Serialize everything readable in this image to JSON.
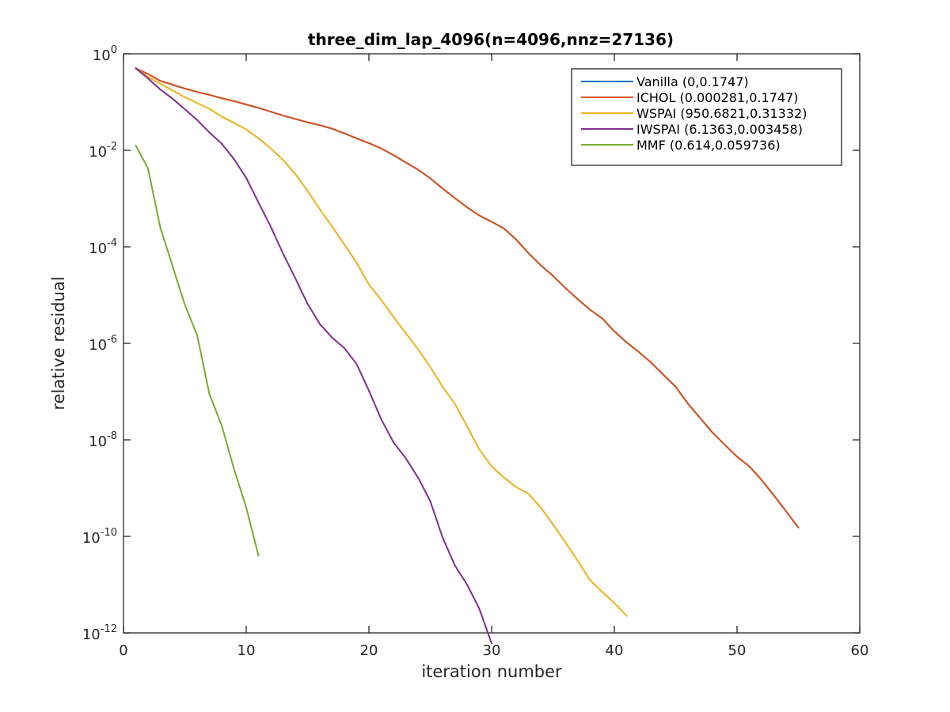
{
  "chart_data": {
    "type": "line",
    "title": "three_dim_lap_4096(n=4096,nnz=27136)",
    "xlabel": "iteration number",
    "ylabel": "relative residual",
    "xlim": [
      0,
      60
    ],
    "ylim_exponent": [
      -12,
      0
    ],
    "yscale": "log",
    "x_ticks": [
      "0",
      "10",
      "20",
      "30",
      "40",
      "50",
      "60"
    ],
    "y_tick_base": "10",
    "y_tick_exponents": [
      "0",
      "-2",
      "-4",
      "-6",
      "-8",
      "-10",
      "-12"
    ],
    "grid": false,
    "legend_position": "top-right",
    "series": [
      {
        "name": "Vanilla (0,0.1747)",
        "color": "#0072BD",
        "log10_y": [
          [
            1,
            -0.3
          ],
          [
            2,
            -0.42
          ],
          [
            3,
            -0.56
          ],
          [
            4,
            -0.64
          ],
          [
            5,
            -0.72
          ],
          [
            6,
            -0.79
          ],
          [
            7,
            -0.85
          ],
          [
            8,
            -0.92
          ],
          [
            9,
            -0.98
          ],
          [
            10,
            -1.05
          ],
          [
            11,
            -1.12
          ],
          [
            12,
            -1.2
          ],
          [
            13,
            -1.28
          ],
          [
            14,
            -1.35
          ],
          [
            15,
            -1.42
          ],
          [
            16,
            -1.48
          ],
          [
            17,
            -1.55
          ],
          [
            18,
            -1.65
          ],
          [
            19,
            -1.75
          ],
          [
            20,
            -1.85
          ],
          [
            21,
            -1.96
          ],
          [
            22,
            -2.1
          ],
          [
            23,
            -2.25
          ],
          [
            24,
            -2.4
          ],
          [
            25,
            -2.58
          ],
          [
            26,
            -2.79
          ],
          [
            27,
            -2.99
          ],
          [
            28,
            -3.18
          ],
          [
            29,
            -3.35
          ],
          [
            30,
            -3.48
          ],
          [
            31,
            -3.62
          ],
          [
            32,
            -3.85
          ],
          [
            33,
            -4.13
          ],
          [
            34,
            -4.38
          ],
          [
            35,
            -4.6
          ],
          [
            36,
            -4.85
          ],
          [
            37,
            -5.08
          ],
          [
            38,
            -5.3
          ],
          [
            39,
            -5.48
          ],
          [
            40,
            -5.75
          ],
          [
            41,
            -5.98
          ],
          [
            42,
            -6.18
          ],
          [
            43,
            -6.4
          ],
          [
            44,
            -6.65
          ],
          [
            45,
            -6.9
          ],
          [
            46,
            -7.25
          ],
          [
            47,
            -7.55
          ],
          [
            48,
            -7.85
          ],
          [
            49,
            -8.1
          ],
          [
            50,
            -8.35
          ],
          [
            51,
            -8.55
          ],
          [
            52,
            -8.83
          ],
          [
            53,
            -9.15
          ],
          [
            54,
            -9.48
          ],
          [
            55,
            -9.82
          ]
        ]
      },
      {
        "name": "ICHOL (0.000281,0.1747)",
        "color": "#D95319",
        "log10_y": [
          [
            1,
            -0.3
          ],
          [
            2,
            -0.42
          ],
          [
            3,
            -0.56
          ],
          [
            4,
            -0.64
          ],
          [
            5,
            -0.72
          ],
          [
            6,
            -0.79
          ],
          [
            7,
            -0.85
          ],
          [
            8,
            -0.92
          ],
          [
            9,
            -0.98
          ],
          [
            10,
            -1.05
          ],
          [
            11,
            -1.12
          ],
          [
            12,
            -1.2
          ],
          [
            13,
            -1.28
          ],
          [
            14,
            -1.35
          ],
          [
            15,
            -1.42
          ],
          [
            16,
            -1.48
          ],
          [
            17,
            -1.55
          ],
          [
            18,
            -1.65
          ],
          [
            19,
            -1.75
          ],
          [
            20,
            -1.85
          ],
          [
            21,
            -1.96
          ],
          [
            22,
            -2.1
          ],
          [
            23,
            -2.25
          ],
          [
            24,
            -2.4
          ],
          [
            25,
            -2.58
          ],
          [
            26,
            -2.79
          ],
          [
            27,
            -2.99
          ],
          [
            28,
            -3.18
          ],
          [
            29,
            -3.35
          ],
          [
            30,
            -3.48
          ],
          [
            31,
            -3.62
          ],
          [
            32,
            -3.85
          ],
          [
            33,
            -4.13
          ],
          [
            34,
            -4.38
          ],
          [
            35,
            -4.6
          ],
          [
            36,
            -4.85
          ],
          [
            37,
            -5.08
          ],
          [
            38,
            -5.3
          ],
          [
            39,
            -5.48
          ],
          [
            40,
            -5.75
          ],
          [
            41,
            -5.98
          ],
          [
            42,
            -6.18
          ],
          [
            43,
            -6.4
          ],
          [
            44,
            -6.65
          ],
          [
            45,
            -6.9
          ],
          [
            46,
            -7.25
          ],
          [
            47,
            -7.55
          ],
          [
            48,
            -7.85
          ],
          [
            49,
            -8.1
          ],
          [
            50,
            -8.35
          ],
          [
            51,
            -8.55
          ],
          [
            52,
            -8.83
          ],
          [
            53,
            -9.15
          ],
          [
            54,
            -9.48
          ],
          [
            55,
            -9.82
          ]
        ]
      },
      {
        "name": "WSPAI (950.6821,0.31332)",
        "color": "#EDB120",
        "log10_y": [
          [
            1,
            -0.3
          ],
          [
            2,
            -0.48
          ],
          [
            3,
            -0.62
          ],
          [
            4,
            -0.76
          ],
          [
            5,
            -0.9
          ],
          [
            6,
            -1.02
          ],
          [
            7,
            -1.14
          ],
          [
            8,
            -1.3
          ],
          [
            9,
            -1.43
          ],
          [
            10,
            -1.57
          ],
          [
            11,
            -1.75
          ],
          [
            12,
            -1.96
          ],
          [
            13,
            -2.2
          ],
          [
            14,
            -2.49
          ],
          [
            15,
            -2.84
          ],
          [
            16,
            -3.22
          ],
          [
            17,
            -3.58
          ],
          [
            18,
            -3.95
          ],
          [
            19,
            -4.33
          ],
          [
            20,
            -4.78
          ],
          [
            21,
            -5.1
          ],
          [
            22,
            -5.45
          ],
          [
            23,
            -5.79
          ],
          [
            24,
            -6.12
          ],
          [
            25,
            -6.49
          ],
          [
            26,
            -6.9
          ],
          [
            27,
            -7.25
          ],
          [
            28,
            -7.72
          ],
          [
            29,
            -8.2
          ],
          [
            30,
            -8.55
          ],
          [
            31,
            -8.78
          ],
          [
            32,
            -8.98
          ],
          [
            33,
            -9.12
          ],
          [
            34,
            -9.4
          ],
          [
            35,
            -9.75
          ],
          [
            36,
            -10.12
          ],
          [
            37,
            -10.5
          ],
          [
            38,
            -10.9
          ],
          [
            39,
            -11.15
          ],
          [
            40,
            -11.38
          ],
          [
            41,
            -11.65
          ]
        ]
      },
      {
        "name": "IWSPAI (6.1363,0.003458)",
        "color": "#7E2F8E",
        "log10_y": [
          [
            1,
            -0.3
          ],
          [
            2,
            -0.51
          ],
          [
            3,
            -0.74
          ],
          [
            4,
            -0.93
          ],
          [
            5,
            -1.15
          ],
          [
            6,
            -1.37
          ],
          [
            7,
            -1.63
          ],
          [
            8,
            -1.86
          ],
          [
            9,
            -2.18
          ],
          [
            10,
            -2.57
          ],
          [
            11,
            -3.08
          ],
          [
            12,
            -3.58
          ],
          [
            13,
            -4.14
          ],
          [
            14,
            -4.65
          ],
          [
            15,
            -5.18
          ],
          [
            16,
            -5.6
          ],
          [
            17,
            -5.88
          ],
          [
            18,
            -6.1
          ],
          [
            19,
            -6.43
          ],
          [
            20,
            -6.98
          ],
          [
            21,
            -7.57
          ],
          [
            22,
            -8.05
          ],
          [
            23,
            -8.38
          ],
          [
            24,
            -8.78
          ],
          [
            25,
            -9.27
          ],
          [
            26,
            -10.02
          ],
          [
            27,
            -10.6
          ],
          [
            28,
            -11.0
          ],
          [
            29,
            -11.5
          ],
          [
            30,
            -12.22
          ]
        ]
      },
      {
        "name": "MMF (0.614,0.059736)",
        "color": "#77AC30",
        "log10_y": [
          [
            1,
            -1.9
          ],
          [
            2,
            -2.38
          ],
          [
            3,
            -3.6
          ],
          [
            4,
            -4.4
          ],
          [
            5,
            -5.2
          ],
          [
            6,
            -5.83
          ],
          [
            7,
            -7.05
          ],
          [
            8,
            -7.7
          ],
          [
            9,
            -8.6
          ],
          [
            10,
            -9.4
          ],
          [
            11,
            -10.4
          ]
        ]
      }
    ]
  }
}
